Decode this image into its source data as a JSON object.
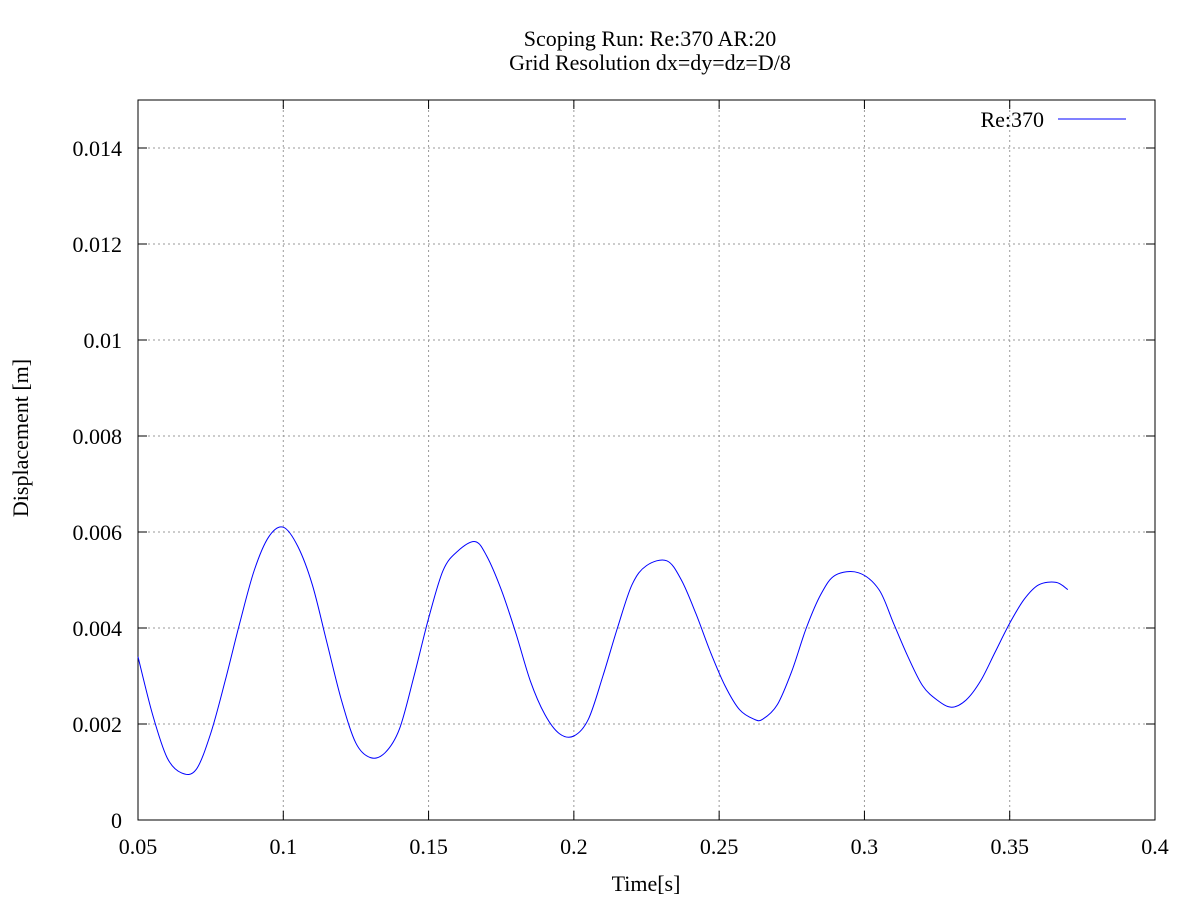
{
  "chart_data": {
    "type": "line",
    "title": "Scoping Run: Re:370  AR:20",
    "subtitle": "Grid Resolution dx=dy=dz=D/8",
    "xlabel": "Time[s]",
    "ylabel": "Displacement [m]",
    "xlim": [
      0.05,
      0.4
    ],
    "ylim": [
      0,
      0.015
    ],
    "xticks": [
      0.05,
      0.1,
      0.15,
      0.2,
      0.25,
      0.3,
      0.35,
      0.4
    ],
    "xtick_labels": [
      "0.05",
      "0.1",
      "0.15",
      "0.2",
      "0.25",
      "0.3",
      "0.35",
      "0.4"
    ],
    "yticks": [
      0,
      0.002,
      0.004,
      0.006,
      0.008,
      0.01,
      0.012,
      0.014
    ],
    "ytick_labels": [
      "0",
      "0.002",
      "0.004",
      "0.006",
      "0.008",
      "0.01",
      "0.012",
      "0.014"
    ],
    "grid": true,
    "legend": "top-right",
    "series": [
      {
        "name": "Re:370",
        "color": "#0000ff",
        "x": [
          0.05,
          0.055,
          0.06,
          0.065,
          0.07,
          0.075,
          0.08,
          0.085,
          0.09,
          0.095,
          0.1,
          0.105,
          0.11,
          0.115,
          0.12,
          0.125,
          0.13,
          0.135,
          0.14,
          0.145,
          0.15,
          0.155,
          0.16,
          0.166,
          0.17,
          0.175,
          0.18,
          0.185,
          0.19,
          0.195,
          0.2,
          0.205,
          0.21,
          0.215,
          0.22,
          0.225,
          0.232,
          0.237,
          0.242,
          0.247,
          0.252,
          0.257,
          0.262,
          0.265,
          0.27,
          0.275,
          0.28,
          0.285,
          0.29,
          0.298,
          0.305,
          0.31,
          0.315,
          0.32,
          0.325,
          0.33,
          0.335,
          0.34,
          0.345,
          0.35,
          0.355,
          0.36,
          0.366,
          0.37
        ],
        "y": [
          0.0034,
          0.0022,
          0.0013,
          0.00098,
          0.00105,
          0.0018,
          0.0029,
          0.0041,
          0.0052,
          0.0059,
          0.0061,
          0.0057,
          0.0049,
          0.0037,
          0.0025,
          0.0016,
          0.0013,
          0.0014,
          0.0019,
          0.003,
          0.0042,
          0.0052,
          0.0056,
          0.0058,
          0.0055,
          0.0048,
          0.0039,
          0.0029,
          0.0022,
          0.0018,
          0.00175,
          0.0021,
          0.003,
          0.004,
          0.0049,
          0.0053,
          0.0054,
          0.005,
          0.0043,
          0.0035,
          0.0028,
          0.0023,
          0.0021,
          0.0021,
          0.0024,
          0.0031,
          0.004,
          0.0047,
          0.0051,
          0.00515,
          0.0048,
          0.0041,
          0.0034,
          0.0028,
          0.0025,
          0.00235,
          0.0025,
          0.0029,
          0.0035,
          0.0041,
          0.0046,
          0.0049,
          0.00495,
          0.0048
        ]
      }
    ]
  }
}
